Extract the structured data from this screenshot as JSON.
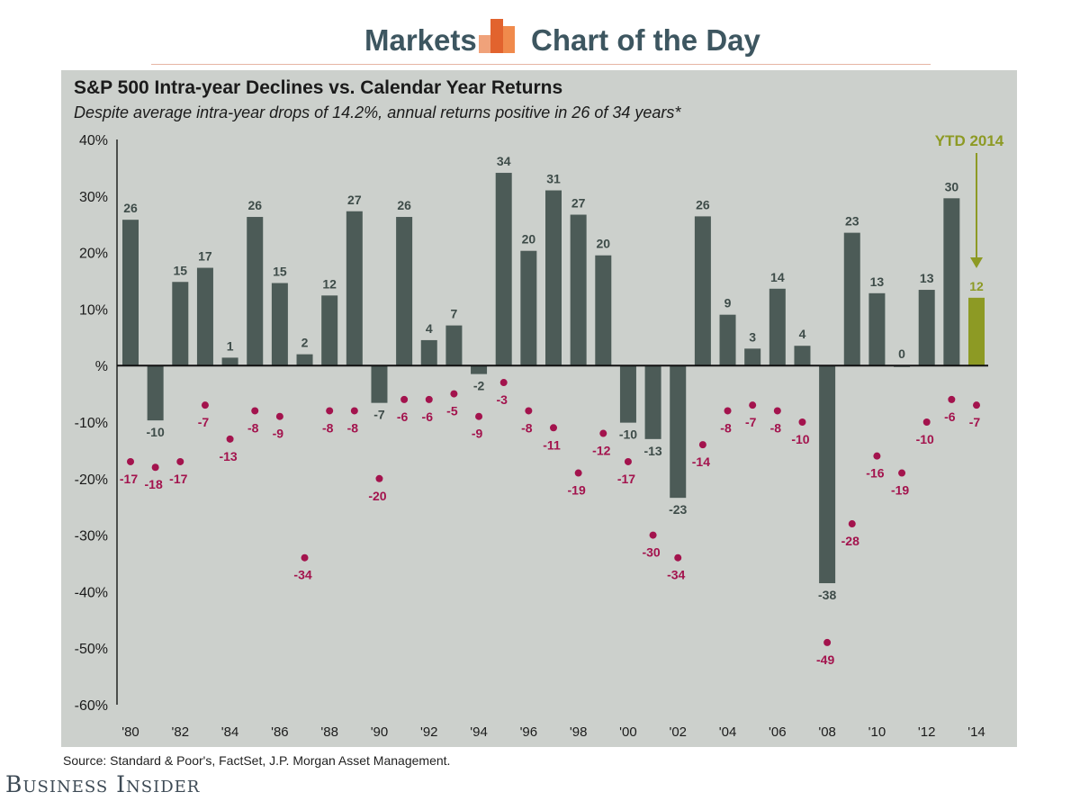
{
  "header": {
    "left_label": "Markets",
    "right_label": "Chart of the Day",
    "logo_icon": "bar-chart-logo-icon",
    "accent_colors": [
      "#f0a27a",
      "#e2632e",
      "#f08a4c"
    ]
  },
  "chart_data": {
    "type": "bar",
    "title": "S&P 500 Intra-year Declines vs. Calendar Year Returns",
    "subtitle": "Despite average intra-year drops of 14.2%, annual returns positive in 26 of 34 years*",
    "ylim": [
      -60,
      40
    ],
    "y_ticks": [
      "40%",
      "30%",
      "20%",
      "10%",
      "%",
      "-10%",
      "-20%",
      "-30%",
      "-40%",
      "-50%",
      "-60%"
    ],
    "x_tick_labels": [
      "'80",
      "'82",
      "'84",
      "'86",
      "'88",
      "'90",
      "'92",
      "'94",
      "'96",
      "'98",
      "'00",
      "'02",
      "'04",
      "'06",
      "'08",
      "'10",
      "'12",
      "'14"
    ],
    "years": [
      1980,
      1981,
      1982,
      1983,
      1984,
      1985,
      1986,
      1987,
      1988,
      1989,
      1990,
      1991,
      1992,
      1993,
      1994,
      1995,
      1996,
      1997,
      1998,
      1999,
      2000,
      2001,
      2002,
      2003,
      2004,
      2005,
      2006,
      2007,
      2008,
      2009,
      2010,
      2011,
      2012,
      2013,
      2014
    ],
    "series": [
      {
        "values": [
          25.8,
          -9.7,
          14.8,
          17.3,
          1.4,
          26.3,
          14.6,
          2.0,
          12.4,
          27.3,
          -6.6,
          26.3,
          4.5,
          7.1,
          -1.5,
          34.1,
          20.3,
          31.0,
          26.7,
          19.5,
          -10.1,
          -13.0,
          -23.4,
          26.4,
          9.0,
          3.0,
          13.6,
          3.5,
          -38.5,
          23.5,
          12.8,
          0.0,
          13.4,
          29.6,
          12.0
        ],
        "labels": [
          "26",
          "-10",
          "15",
          "17",
          "1",
          "26",
          "15",
          "2",
          "12",
          "27",
          "-7",
          "26",
          "4",
          "7",
          "-2",
          "34",
          "20",
          "31",
          "27",
          "20",
          "-10",
          "-13",
          "-23",
          "26",
          "9",
          "3",
          "14",
          "4",
          "-38",
          "23",
          "13",
          "0",
          "13",
          "30",
          "12"
        ],
        "color": "#4c5b57",
        "highlight_color": "#8d9a24"
      },
      {
        "values": [
          -17,
          -18,
          -17,
          -7,
          -13,
          -8,
          -9,
          -34,
          -8,
          -8,
          -20,
          -6,
          -6,
          -5,
          -9,
          -3,
          -8,
          -11,
          -19,
          -12,
          -17,
          -30,
          -34,
          -14,
          -8,
          -7,
          -8,
          -10,
          -49,
          -28,
          -16,
          -19,
          -10,
          -6,
          -7
        ],
        "labels": [
          "-17",
          "-18",
          "-17",
          "-7",
          "-13",
          "-8",
          "-9",
          "-34",
          "-8",
          "-8",
          "-20",
          "-6",
          "-6",
          "-5",
          "-9",
          "-3",
          "-8",
          "-11",
          "-19",
          "-12",
          "-17",
          "-30",
          "-34",
          "-14",
          "-8",
          "-7",
          "-8",
          "-10",
          "-49",
          "-28",
          "-16",
          "-19",
          "-10",
          "-6",
          "-7"
        ],
        "color": "#a3134d"
      }
    ],
    "annotation": "YTD 2014",
    "annotation_color": "#8d9a24"
  },
  "footer": {
    "source": "Source: Standard & Poor's, FactSet, J.P. Morgan Asset Management.",
    "publisher": "Business Insider"
  }
}
